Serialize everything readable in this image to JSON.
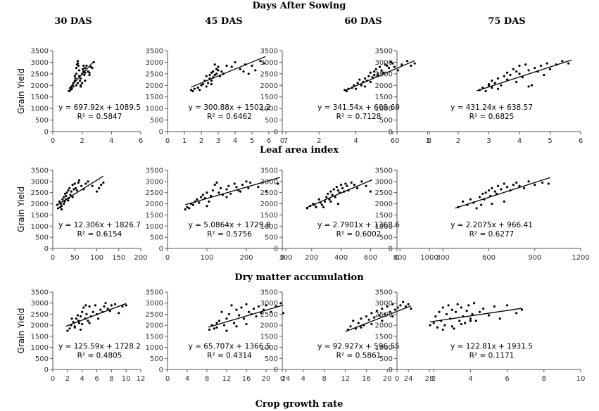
{
  "column_titles": [
    "30 DAS",
    "45 DAS",
    "60 DAS",
    "75 DAS"
  ],
  "row_titles": [
    "Days After Sowing",
    "Leaf area index",
    "Dry matter accumulation",
    "Crop growth rate"
  ],
  "chart_data": [
    {
      "type": "scatter",
      "row": 0,
      "col": 0,
      "ylabel": "Grain Yield",
      "xlim": [
        0,
        6
      ],
      "xticks": [
        0,
        2,
        4,
        6
      ],
      "ylim": [
        0,
        3500
      ],
      "yticks": [
        0,
        500,
        1000,
        1500,
        2000,
        2500,
        3000,
        3500
      ],
      "slope": 697.92,
      "intercept": 1089.5,
      "equation": "y = 697.92x + 1089.5",
      "r2": "R² = 0.5847",
      "trend_x": [
        1.1,
        2.8
      ],
      "x": [
        1.1,
        1.2,
        1.25,
        1.3,
        1.35,
        1.4,
        1.5,
        1.5,
        1.55,
        1.6,
        1.6,
        1.65,
        1.7,
        1.7,
        1.75,
        1.8,
        1.8,
        1.85,
        1.9,
        1.9,
        2.0,
        2.0,
        2.05,
        2.1,
        2.1,
        2.15,
        2.2,
        2.2,
        2.3,
        2.4,
        2.5,
        2.6,
        2.7,
        2.8,
        1.6,
        1.7,
        1.9,
        2.2,
        2.5,
        1.4
      ],
      "y": [
        1750,
        1800,
        1900,
        1850,
        2000,
        2100,
        2200,
        2400,
        2300,
        2500,
        2750,
        2900,
        3050,
        2950,
        2850,
        2650,
        2400,
        2200,
        2000,
        2300,
        2100,
        2500,
        2700,
        2850,
        2600,
        2450,
        2550,
        2750,
        2850,
        2600,
        2550,
        2800,
        2750,
        3000,
        2000,
        2100,
        1950,
        2200,
        2450,
        1950
      ]
    },
    {
      "type": "scatter",
      "row": 0,
      "col": 1,
      "ylabel": "",
      "xlim": [
        0,
        7
      ],
      "xticks": [
        0,
        1,
        2,
        3,
        4,
        5,
        6,
        7
      ],
      "ylim": [
        0,
        3500
      ],
      "yticks": [
        0,
        500,
        1000,
        1500,
        2000,
        2500,
        3000,
        3500
      ],
      "slope": 300.88,
      "intercept": 1502.2,
      "equation": "y = 300.88x + 1502.2",
      "r2": "R² = 0.6462",
      "trend_x": [
        1.4,
        5.8
      ],
      "x": [
        1.4,
        1.5,
        1.6,
        1.8,
        1.9,
        2.0,
        2.1,
        2.2,
        2.3,
        2.4,
        2.5,
        2.5,
        2.6,
        2.6,
        2.7,
        2.7,
        2.8,
        2.8,
        2.9,
        2.9,
        3.0,
        3.0,
        3.1,
        3.2,
        3.3,
        3.5,
        3.8,
        4.0,
        4.3,
        4.5,
        4.6,
        4.8,
        5.0,
        5.2,
        5.5,
        5.7,
        2.3,
        2.6
      ],
      "y": [
        1800,
        1750,
        1850,
        1900,
        1800,
        2000,
        2050,
        2200,
        1950,
        2100,
        2300,
        2450,
        2200,
        2550,
        2350,
        2600,
        2450,
        2900,
        2700,
        2500,
        2650,
        2800,
        2400,
        2600,
        2500,
        2850,
        2800,
        3000,
        2700,
        2600,
        2900,
        2500,
        2850,
        2650,
        3050,
        2950,
        2400,
        2050
      ]
    },
    {
      "type": "scatter",
      "row": 0,
      "col": 2,
      "ylabel": "",
      "xlim": [
        0,
        8
      ],
      "xticks": [
        0,
        2,
        4,
        6,
        8
      ],
      "ylim": [
        0,
        3500
      ],
      "yticks": [
        0,
        500,
        1000,
        1500,
        2000,
        2500,
        3000,
        3500
      ],
      "slope": 341.54,
      "intercept": 609.69,
      "equation": "y = 341.54x + 609.69",
      "r2": "R² = 0.7128",
      "trend_x": [
        3.4,
        7.2
      ],
      "x": [
        3.4,
        3.5,
        3.6,
        3.8,
        3.9,
        4.0,
        4.1,
        4.2,
        4.3,
        4.4,
        4.5,
        4.6,
        4.7,
        4.8,
        4.9,
        5.0,
        5.0,
        5.1,
        5.2,
        5.3,
        5.4,
        5.5,
        5.6,
        5.7,
        5.8,
        5.9,
        6.0,
        6.1,
        6.3,
        6.5,
        6.8,
        7.0,
        7.2,
        4.5,
        5.2,
        4.8
      ],
      "y": [
        1800,
        1750,
        1850,
        1900,
        2000,
        1850,
        2100,
        2250,
        2000,
        2150,
        2300,
        2200,
        2400,
        2550,
        2350,
        2600,
        2450,
        2700,
        2500,
        2800,
        2650,
        2550,
        2900,
        2850,
        2750,
        3000,
        2950,
        2800,
        2650,
        2900,
        3050,
        2850,
        2950,
        1950,
        2400,
        2150
      ]
    },
    {
      "type": "scatter",
      "row": 0,
      "col": 3,
      "ylabel": "",
      "xlim": [
        0,
        6
      ],
      "xticks": [
        0,
        1,
        2,
        3,
        4,
        5,
        6
      ],
      "ylim": [
        0,
        3500
      ],
      "yticks": [
        0,
        500,
        1000,
        1500,
        2000,
        2500,
        3000,
        3500
      ],
      "slope": 431.24,
      "intercept": 638.57,
      "equation": "y = 431.24x + 638.57",
      "r2": "R² = 0.6825",
      "trend_x": [
        2.6,
        5.7
      ],
      "x": [
        2.7,
        2.8,
        2.9,
        3.0,
        3.1,
        3.1,
        3.2,
        3.3,
        3.4,
        3.5,
        3.6,
        3.6,
        3.7,
        3.8,
        3.9,
        4.0,
        4.0,
        4.1,
        4.2,
        4.3,
        4.4,
        4.5,
        4.6,
        4.7,
        4.8,
        4.9,
        5.0,
        5.2,
        5.4,
        5.6,
        3.3,
        3.9,
        4.3,
        3.0
      ],
      "y": [
        1800,
        1900,
        1750,
        2050,
        1900,
        2200,
        2100,
        2300,
        2000,
        2400,
        2550,
        2250,
        2450,
        2700,
        2600,
        2850,
        2500,
        2350,
        2900,
        2650,
        2000,
        2750,
        2600,
        2850,
        2450,
        2950,
        2700,
        2900,
        3050,
        2950,
        1850,
        2150,
        1950,
        2000
      ]
    },
    {
      "type": "scatter",
      "row": 1,
      "col": 0,
      "ylabel": "Grain Yield",
      "xlim": [
        0,
        200
      ],
      "xticks": [
        0,
        50,
        100,
        150,
        200
      ],
      "ylim": [
        0,
        3500
      ],
      "yticks": [
        0,
        500,
        1000,
        1500,
        2000,
        2500,
        3000,
        3500
      ],
      "slope": 12.306,
      "intercept": 1826.7,
      "equation": "y = 12.306x + 1826.7",
      "r2": "R² = 0.6154",
      "trend_x": [
        8,
        115
      ],
      "x": [
        10,
        12,
        15,
        17,
        18,
        20,
        22,
        25,
        27,
        28,
        30,
        32,
        35,
        36,
        38,
        40,
        42,
        45,
        48,
        50,
        52,
        55,
        58,
        60,
        65,
        70,
        75,
        80,
        90,
        100,
        105,
        110,
        115,
        25,
        35,
        45,
        20,
        30
      ],
      "y": [
        1950,
        1800,
        2100,
        1850,
        2000,
        1900,
        2200,
        2300,
        2100,
        2450,
        2350,
        2500,
        2600,
        2250,
        2700,
        2400,
        2550,
        2850,
        2650,
        2900,
        2700,
        2600,
        2950,
        3050,
        2800,
        2650,
        2900,
        3000,
        2800,
        2550,
        2700,
        2850,
        2950,
        2000,
        2150,
        2300,
        1750,
        2200
      ]
    },
    {
      "type": "scatter",
      "row": 1,
      "col": 1,
      "ylabel": "",
      "xlim": [
        0,
        300
      ],
      "xticks": [
        0,
        100,
        200,
        300
      ],
      "ylim": [
        0,
        3500
      ],
      "yticks": [
        0,
        500,
        1000,
        1500,
        2000,
        2500,
        3000,
        3500
      ],
      "slope": 5.0864,
      "intercept": 1729.8,
      "equation": "y = 5.0864x + 1729.8",
      "r2": "R² = 0.5756",
      "trend_x": [
        45,
        285
      ],
      "x": [
        45,
        50,
        55,
        60,
        65,
        70,
        75,
        80,
        85,
        90,
        95,
        100,
        105,
        110,
        115,
        120,
        125,
        130,
        135,
        140,
        150,
        155,
        160,
        170,
        175,
        180,
        185,
        190,
        200,
        205,
        210,
        230,
        250,
        280,
        100,
        150
      ],
      "y": [
        1750,
        1850,
        1800,
        2000,
        1950,
        2100,
        2200,
        2050,
        2300,
        2400,
        2250,
        2500,
        2100,
        2350,
        2600,
        2850,
        2950,
        2500,
        2700,
        2400,
        2650,
        2800,
        2450,
        2900,
        2750,
        2600,
        2550,
        2850,
        3000,
        2700,
        2950,
        2750,
        2550,
        2900,
        1900,
        2300
      ]
    },
    {
      "type": "scatter",
      "row": 1,
      "col": 2,
      "ylabel": "",
      "xlim": [
        0,
        1000
      ],
      "xticks": [
        0,
        200,
        400,
        600,
        800,
        1000
      ],
      "ylim": [
        0,
        3500
      ],
      "yticks": [
        0,
        500,
        1000,
        1500,
        2000,
        2500,
        3000,
        3500
      ],
      "slope": 2.7901,
      "intercept": 1368.6,
      "equation": "y = 2.7901x + 1368.6",
      "r2": "R² = 0.6002",
      "trend_x": [
        160,
        610
      ],
      "x": [
        170,
        190,
        210,
        230,
        250,
        260,
        270,
        290,
        300,
        310,
        320,
        330,
        340,
        350,
        360,
        370,
        380,
        390,
        400,
        410,
        420,
        430,
        440,
        450,
        470,
        490,
        510,
        540,
        570,
        600,
        280,
        330,
        380,
        220
      ],
      "y": [
        1800,
        1900,
        2000,
        1850,
        2200,
        2050,
        1950,
        2100,
        2300,
        2450,
        2200,
        2550,
        2400,
        2650,
        2300,
        2750,
        2600,
        2500,
        2850,
        2700,
        2550,
        2900,
        2800,
        2600,
        2950,
        2850,
        2700,
        3000,
        2800,
        2550,
        1850,
        2100,
        2000,
        1950
      ]
    },
    {
      "type": "scatter",
      "row": 1,
      "col": 3,
      "ylabel": "",
      "xlim": [
        0,
        1200
      ],
      "xticks": [
        0,
        300,
        600,
        900,
        1200
      ],
      "ylim": [
        0,
        3500
      ],
      "yticks": [
        0,
        500,
        1000,
        1500,
        2000,
        2500,
        3000,
        3500
      ],
      "slope": 2.2075,
      "intercept": 966.41,
      "equation": "y = 2.2075x + 966.41",
      "r2": "R² = 0.6277",
      "trend_x": [
        380,
        1000
      ],
      "x": [
        400,
        430,
        460,
        480,
        500,
        520,
        540,
        560,
        570,
        580,
        600,
        610,
        620,
        640,
        650,
        660,
        680,
        700,
        720,
        740,
        760,
        780,
        800,
        830,
        860,
        900,
        950,
        990,
        550,
        620,
        700
      ],
      "y": [
        1850,
        2100,
        1950,
        2200,
        2050,
        1800,
        2300,
        2450,
        2200,
        2500,
        2600,
        2350,
        2700,
        2550,
        2450,
        2800,
        2650,
        2900,
        2750,
        2600,
        2850,
        2950,
        2800,
        2700,
        3000,
        2850,
        2950,
        2900,
        1950,
        2000,
        2100
      ]
    },
    {
      "type": "scatter",
      "row": 2,
      "col": 0,
      "ylabel": "Grain Yield",
      "xlim": [
        0,
        12
      ],
      "xticks": [
        0,
        2,
        4,
        6,
        8,
        10,
        12
      ],
      "ylim": [
        0,
        3500
      ],
      "yticks": [
        0,
        500,
        1000,
        1500,
        2000,
        2500,
        3000,
        3500
      ],
      "slope": 125.59,
      "intercept": 1728.2,
      "equation": "y = 125.59x + 1728.2",
      "r2": "R² = 0.4805",
      "trend_x": [
        1.8,
        10
      ],
      "x": [
        2.0,
        2.3,
        2.5,
        2.8,
        3.0,
        3.2,
        3.4,
        3.5,
        3.6,
        3.8,
        4.0,
        4.2,
        4.4,
        4.5,
        4.6,
        4.8,
        5.0,
        5.2,
        5.5,
        5.8,
        6.0,
        6.2,
        6.5,
        6.8,
        7.0,
        7.2,
        7.5,
        7.8,
        8.0,
        8.5,
        9.0,
        9.5,
        10.0,
        3.0,
        4.0,
        5.0,
        2.6,
        3.8
      ],
      "y": [
        1750,
        1850,
        2000,
        2150,
        1950,
        2300,
        2450,
        2200,
        2100,
        2400,
        2600,
        2800,
        2300,
        2900,
        2500,
        2200,
        2850,
        2400,
        2600,
        2900,
        2500,
        2300,
        2700,
        2600,
        2850,
        3000,
        2750,
        2650,
        2900,
        2950,
        2550,
        2850,
        2900,
        1900,
        2050,
        2100,
        2300,
        1800
      ]
    },
    {
      "type": "scatter",
      "row": 2,
      "col": 1,
      "ylabel": "",
      "xlim": [
        0,
        24
      ],
      "xticks": [
        0,
        4,
        8,
        12,
        16,
        20,
        24
      ],
      "ylim": [
        0,
        3500
      ],
      "yticks": [
        0,
        500,
        1000,
        1500,
        2000,
        2500,
        3000,
        3500
      ],
      "slope": 65.707,
      "intercept": 1366.5,
      "equation": "y = 65.707x + 1366.5",
      "r2": "R² = 0.4314",
      "trend_x": [
        8.3,
        23.5
      ],
      "x": [
        8.5,
        9.0,
        9.5,
        10.0,
        10.5,
        11.0,
        11.5,
        12.0,
        12.5,
        13.0,
        13.5,
        14.0,
        14.5,
        15.0,
        15.5,
        16.0,
        16.5,
        17.0,
        17.5,
        18.0,
        18.5,
        19.0,
        19.5,
        20.0,
        21.0,
        22.0,
        23.0,
        23.5,
        12.0,
        14.0,
        16.0,
        10.0
      ],
      "y": [
        1800,
        2000,
        1850,
        2100,
        2200,
        2600,
        2000,
        2300,
        2500,
        2900,
        2100,
        2700,
        2450,
        2800,
        2300,
        2950,
        2600,
        2500,
        2750,
        2400,
        2850,
        2550,
        2700,
        2900,
        2600,
        2850,
        3000,
        2550,
        1750,
        1950,
        2050,
        1900
      ]
    },
    {
      "type": "scatter",
      "row": 2,
      "col": 2,
      "ylabel": "",
      "xlim": [
        0,
        28
      ],
      "xticks": [
        0,
        4,
        8,
        12,
        16,
        20,
        24,
        28
      ],
      "ylim": [
        0,
        3500
      ],
      "yticks": [
        0,
        500,
        1000,
        1500,
        2000,
        2500,
        3000,
        3500
      ],
      "slope": 92.927,
      "intercept": 596.55,
      "equation": "y = 92.927x + 596.55",
      "r2": "R² = 0.5861",
      "trend_x": [
        12,
        24.5
      ],
      "x": [
        12.5,
        13.0,
        13.5,
        14.0,
        14.5,
        15.0,
        15.5,
        16.0,
        16.5,
        17.0,
        17.5,
        18.0,
        18.5,
        19.0,
        19.5,
        20.0,
        20.5,
        21.0,
        21.5,
        22.0,
        22.5,
        23.0,
        23.5,
        24.0,
        24.5,
        15.0,
        17.0,
        19.0,
        21.0
      ],
      "y": [
        1800,
        1950,
        2200,
        1850,
        2100,
        2300,
        2000,
        2400,
        2250,
        2550,
        2350,
        2650,
        2450,
        2750,
        2500,
        2850,
        2600,
        2950,
        2700,
        2800,
        2900,
        3050,
        2850,
        2950,
        2750,
        1900,
        2050,
        2200,
        2400
      ]
    },
    {
      "type": "scatter",
      "row": 2,
      "col": 3,
      "ylabel": "",
      "xlim": [
        0,
        10
      ],
      "xticks": [
        0,
        2,
        4,
        6,
        8,
        10
      ],
      "ylim": [
        0,
        3500
      ],
      "yticks": [
        0,
        500,
        1000,
        1500,
        2000,
        2500,
        3000,
        3500
      ],
      "slope": 122.81,
      "intercept": 1931.5,
      "equation": "y = 122.81x + 1931.5",
      "r2": "R² = 0.1171",
      "trend_x": [
        1.8,
        6.8
      ],
      "x": [
        1.8,
        2.0,
        2.1,
        2.2,
        2.3,
        2.4,
        2.5,
        2.6,
        2.7,
        2.8,
        2.9,
        3.0,
        3.1,
        3.2,
        3.3,
        3.4,
        3.5,
        3.6,
        3.7,
        3.8,
        3.9,
        4.0,
        4.1,
        4.2,
        4.3,
        4.5,
        4.7,
        5.0,
        5.3,
        5.6,
        6.0,
        6.5,
        6.8,
        2.5,
        3.0,
        3.5,
        4.0
      ],
      "y": [
        2000,
        2100,
        2400,
        1900,
        2600,
        2200,
        2800,
        2000,
        2500,
        2900,
        2300,
        2700,
        1850,
        2600,
        2950,
        2200,
        2800,
        2400,
        2100,
        2650,
        2900,
        2300,
        2500,
        3000,
        2200,
        2600,
        2750,
        2450,
        2850,
        2300,
        2900,
        2550,
        2700,
        1800,
        1950,
        2050,
        2200
      ]
    }
  ]
}
